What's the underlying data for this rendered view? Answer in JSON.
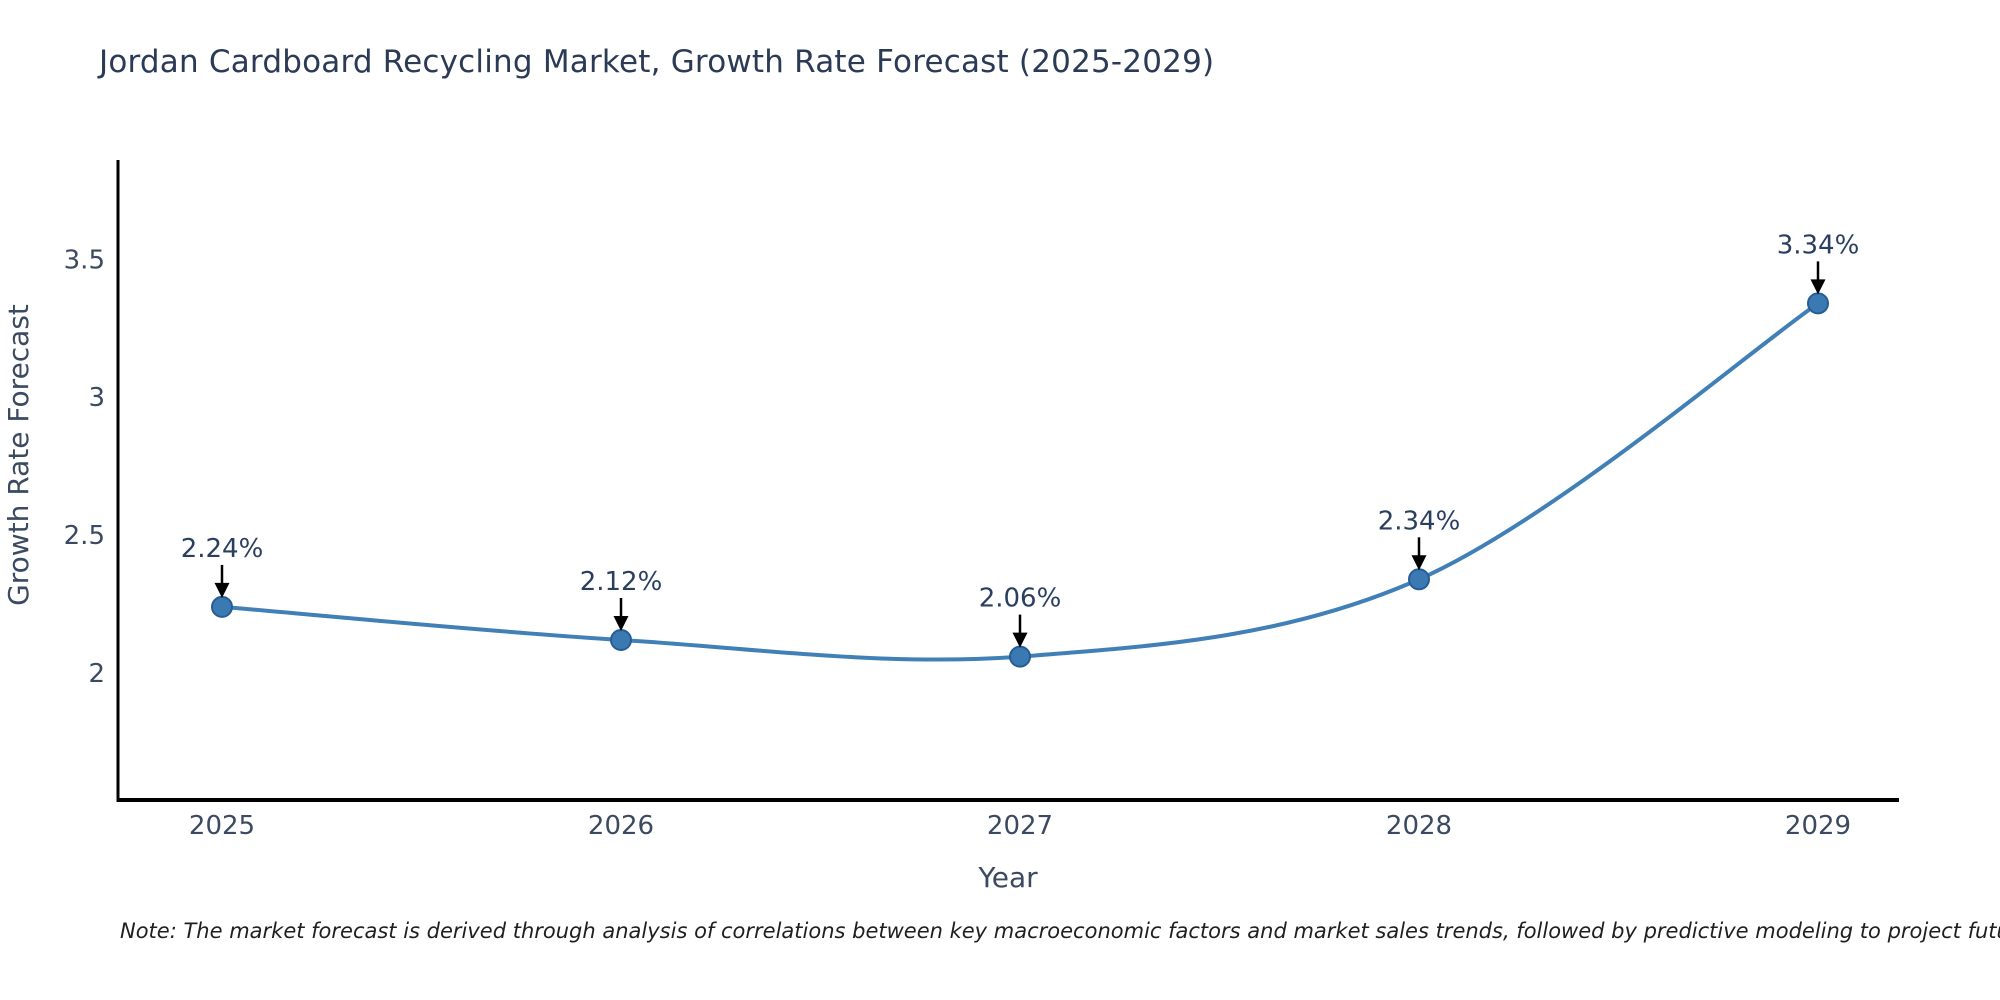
{
  "title": "Jordan Cardboard Recycling Market, Growth Rate Forecast (2025-2029)",
  "note": "Note: The market forecast is derived through analysis of correlations between key macroeconomic factors and market sales trends, followed by predictive modeling to project future sales",
  "chart_data": {
    "type": "line",
    "title": "Jordan Cardboard Recycling Market, Growth Rate Forecast (2025-2029)",
    "xlabel": "Year",
    "ylabel": "Growth Rate Forecast",
    "categories": [
      "2025",
      "2026",
      "2027",
      "2028",
      "2029"
    ],
    "series": [
      {
        "name": "Growth Rate Forecast",
        "values": [
          2.24,
          2.12,
          2.06,
          2.34,
          3.34
        ]
      }
    ],
    "point_labels": [
      "2.24%",
      "2.12%",
      "2.06%",
      "2.34%",
      "3.34%"
    ],
    "ytick_values": [
      2,
      2.5,
      3,
      3.5
    ],
    "ytick_labels": [
      "2",
      "2.5",
      "3",
      "3.5"
    ],
    "ylim": [
      1.54,
      3.86
    ],
    "grid": false,
    "legend_position": "none",
    "line_style": "spline",
    "annotation_style": "black-down-arrow",
    "colors": {
      "line": "#4080b7",
      "marker_fill": "#3a79b2",
      "marker_edge": "#265d94",
      "axis": "#000000",
      "tick_text": "#3c4a61",
      "annotation_text": "#2a3f5f",
      "annotation_arrow": "#000000",
      "title_text": "#2b3a55",
      "note_text": "#1f1f1f",
      "background": "#ffffff"
    }
  }
}
